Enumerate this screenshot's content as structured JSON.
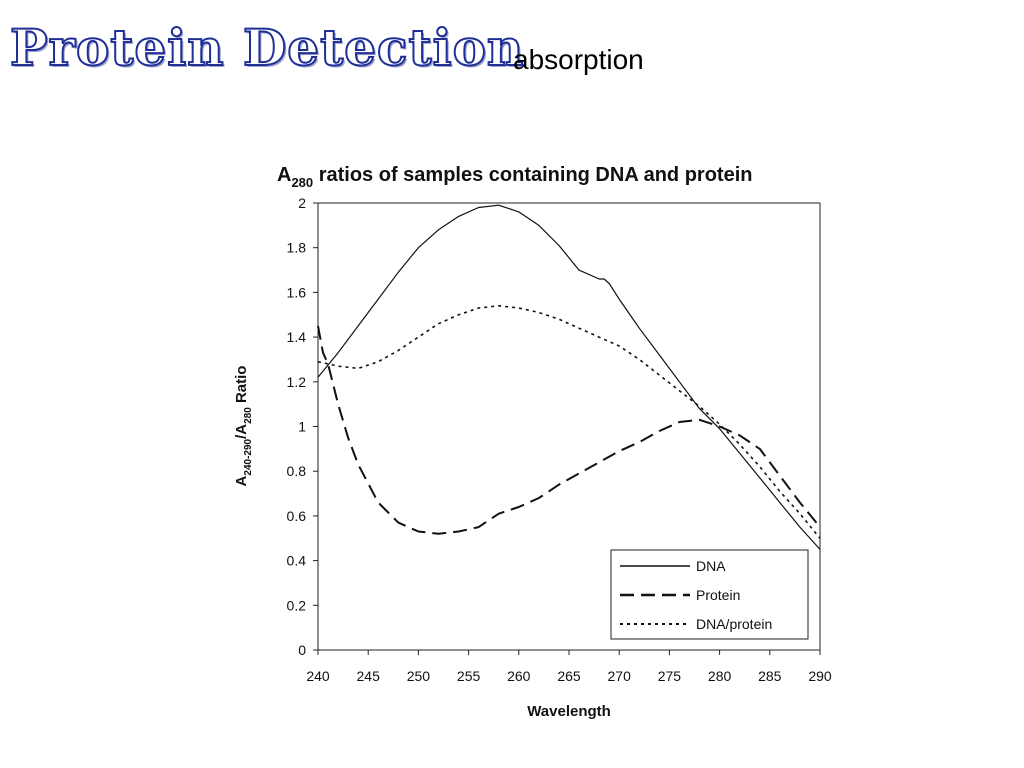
{
  "slide": {
    "title": "Protein Detection",
    "subtitle": "absorption"
  },
  "chart_data": {
    "type": "line",
    "title": {
      "prefix": "A",
      "subscript": "280",
      "suffix": " ratios of samples containing DNA and protein"
    },
    "xlabel": "Wavelength",
    "ylabel": {
      "prefix": "A",
      "subscript1": "240-290",
      "middle": "/A",
      "subscript2": "280",
      "suffix": " Ratio"
    },
    "xlim": [
      240,
      290
    ],
    "ylim": [
      0,
      2
    ],
    "x_ticks": [
      "240",
      "245",
      "250",
      "255",
      "260",
      "265",
      "270",
      "275",
      "280",
      "285",
      "290"
    ],
    "y_ticks": [
      "0",
      "0.2",
      "0.4",
      "0.6",
      "0.8",
      "1",
      "1.2",
      "1.4",
      "1.6",
      "1.8",
      "2"
    ],
    "grid": false,
    "legend_position": "bottom-right",
    "series": [
      {
        "name": "DNA",
        "style": "solid",
        "x": [
          240,
          242,
          244,
          246,
          248,
          250,
          252,
          254,
          256,
          258,
          260,
          262,
          264,
          266,
          268,
          268.5,
          269,
          270,
          272,
          274,
          276,
          278,
          280,
          282,
          284,
          286,
          288,
          290
        ],
        "y": [
          1.22,
          1.33,
          1.45,
          1.57,
          1.69,
          1.8,
          1.88,
          1.94,
          1.98,
          1.99,
          1.96,
          1.9,
          1.81,
          1.7,
          1.66,
          1.66,
          1.64,
          1.57,
          1.44,
          1.32,
          1.2,
          1.08,
          0.99,
          0.88,
          0.77,
          0.66,
          0.55,
          0.45
        ]
      },
      {
        "name": "Protein",
        "style": "dashed",
        "x": [
          240,
          240.5,
          241,
          242,
          243,
          244,
          246,
          248,
          250,
          252,
          254,
          256,
          258,
          260,
          262,
          264,
          266,
          268,
          270,
          272,
          274,
          276,
          278,
          280,
          282,
          284,
          286,
          288,
          290
        ],
        "y": [
          1.45,
          1.33,
          1.28,
          1.1,
          0.95,
          0.83,
          0.66,
          0.57,
          0.53,
          0.52,
          0.53,
          0.55,
          0.61,
          0.64,
          0.68,
          0.74,
          0.79,
          0.84,
          0.89,
          0.93,
          0.98,
          1.02,
          1.03,
          1.0,
          0.96,
          0.9,
          0.78,
          0.66,
          0.55
        ]
      },
      {
        "name": "DNA/protein",
        "style": "dotted",
        "x": [
          240,
          241,
          242,
          244,
          246,
          248,
          250,
          252,
          254,
          256,
          258,
          260,
          262,
          264,
          266,
          268,
          270,
          272,
          274,
          276,
          278,
          280,
          282,
          284,
          286,
          288,
          290
        ],
        "y": [
          1.29,
          1.28,
          1.27,
          1.26,
          1.29,
          1.34,
          1.4,
          1.46,
          1.5,
          1.53,
          1.54,
          1.53,
          1.51,
          1.48,
          1.44,
          1.4,
          1.36,
          1.3,
          1.23,
          1.16,
          1.09,
          1.01,
          0.92,
          0.82,
          0.71,
          0.61,
          0.5
        ]
      }
    ]
  }
}
